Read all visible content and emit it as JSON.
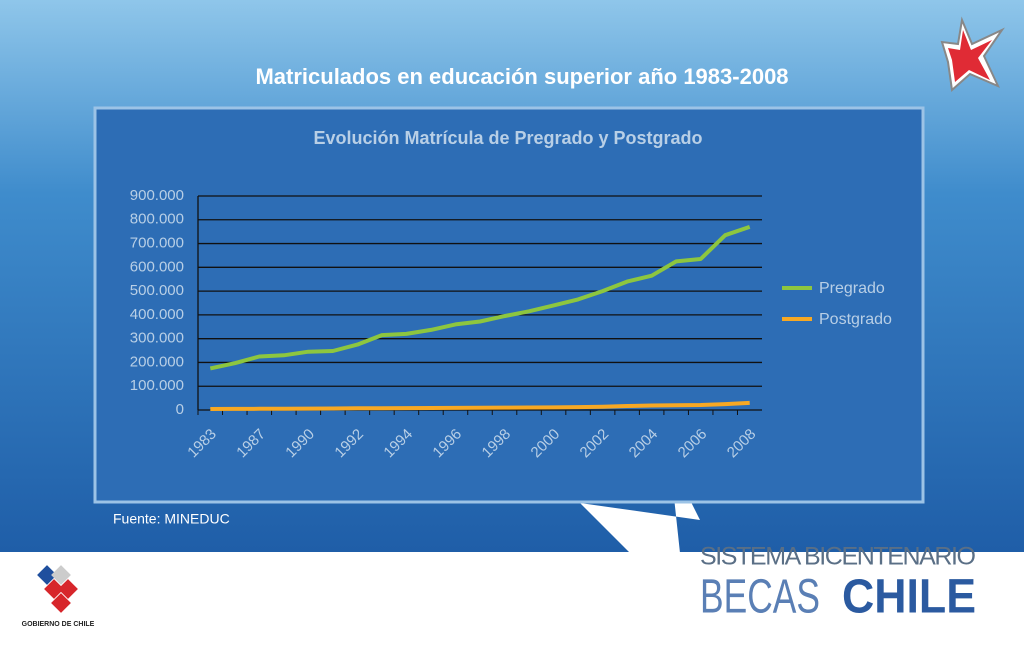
{
  "heading": "Matriculados en educación superior año  1983-2008",
  "source": "Fuente: MINEDUC",
  "logos": {
    "program_line1": "SISTEMA BICENTENARIO",
    "program_word1": "BECAS",
    "program_word2": "CHILE",
    "government": "GOBIERNO DE CHILE"
  },
  "chart_data": {
    "type": "line",
    "title": "Evolución Matrícula de Pregrado y Postgrado",
    "categories": [
      "1983",
      null,
      "1987",
      null,
      "1990",
      null,
      "1992",
      null,
      "1994",
      null,
      "1996",
      null,
      "1998",
      null,
      "2000",
      null,
      "2002",
      null,
      "2004",
      null,
      "2006",
      null,
      "2008"
    ],
    "series": [
      {
        "name": "Pregrado",
        "color": "#8dc63f",
        "values": [
          175000,
          197000,
          225000,
          230000,
          245000,
          248000,
          275000,
          315000,
          320000,
          337000,
          360000,
          372000,
          395000,
          415000,
          440000,
          465000,
          500000,
          540000,
          565000,
          625000,
          635000,
          735000,
          770000
        ]
      },
      {
        "name": "Postgrado",
        "color": "#f7a823",
        "values": [
          4000,
          4500,
          5000,
          5500,
          6000,
          6500,
          7000,
          7500,
          8000,
          8500,
          9000,
          9500,
          10000,
          10500,
          11000,
          12000,
          14000,
          17000,
          19000,
          20000,
          21000,
          25000,
          30000
        ]
      }
    ],
    "ylim": [
      0,
      900000
    ],
    "yticks": [
      0,
      {
        "value": 100000,
        "label": "100.000"
      },
      {
        "value": 200000,
        "label": "200.000"
      },
      {
        "value": 300000,
        "label": "300.000"
      },
      {
        "value": 400000,
        "label": "400.000"
      },
      {
        "value": 500000,
        "label": "500.000"
      },
      {
        "value": 600000,
        "label": "600.000"
      },
      {
        "value": 700000,
        "label": "700.000"
      },
      {
        "value": 800000,
        "label": "800.000"
      },
      {
        "value": 900000,
        "label": "900.000"
      }
    ],
    "grid": true,
    "legend": "right"
  }
}
